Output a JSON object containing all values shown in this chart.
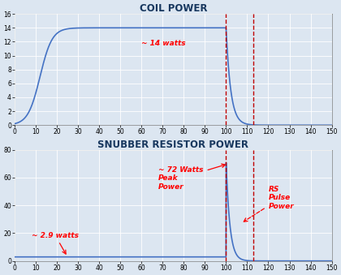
{
  "fig_width": 4.2,
  "fig_height": 3.39,
  "dpi": 100,
  "bg_color": "#dce6f1",
  "plot_bg_color": "#dce6f1",
  "top_title": "COIL POWER",
  "bottom_title": "SNUBBER RESISTOR POWER",
  "title_color": "#17375e",
  "title_fontsize": 8.5,
  "xlim": [
    0,
    150
  ],
  "coil_ylim": [
    0,
    16
  ],
  "snubber_ylim": [
    0,
    80
  ],
  "coil_yticks": [
    0,
    2,
    4,
    6,
    8,
    10,
    12,
    14,
    16
  ],
  "snubber_yticks": [
    0,
    20,
    40,
    60,
    80
  ],
  "xticks": [
    0,
    10,
    20,
    30,
    40,
    50,
    60,
    70,
    80,
    90,
    100,
    110,
    120,
    130,
    140,
    150
  ],
  "line_color": "#4472c4",
  "line_width": 1.2,
  "annotation_color": "#ff0000",
  "dashed_line_color": "#c00000",
  "grid_color": "#ffffff",
  "grid_alpha": 1.0,
  "tick_fontsize": 5.5,
  "label_fontsize": 6.5,
  "spine_color": "#7f7f7f",
  "vline1": 100,
  "vline2": 113
}
